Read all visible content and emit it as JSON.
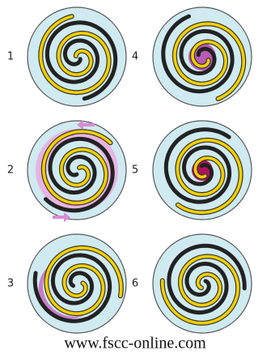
{
  "panels": [
    {
      "label": "1"
    },
    {
      "label": "2"
    },
    {
      "label": "3"
    },
    {
      "label": "4"
    },
    {
      "label": "5"
    },
    {
      "label": "6"
    }
  ],
  "footer": "www.fscc-online.com"
}
